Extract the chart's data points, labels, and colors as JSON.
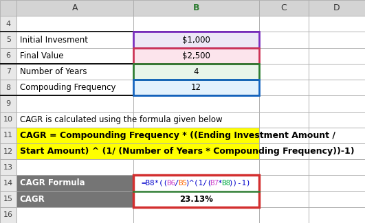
{
  "rows": [
    {
      "row": 4,
      "label": "",
      "value": "",
      "label_bg": "#ffffff",
      "value_bg": "#ffffff"
    },
    {
      "row": 5,
      "label": "Initial Invesment",
      "value": "$1,000",
      "label_bg": "#ffffff",
      "value_bg": "#ede7f6"
    },
    {
      "row": 6,
      "label": "Final Value",
      "value": "$2,500",
      "label_bg": "#ffffff",
      "value_bg": "#fce4ec"
    },
    {
      "row": 7,
      "label": "Number of Years",
      "value": "4",
      "label_bg": "#ffffff",
      "value_bg": "#e8f5e9"
    },
    {
      "row": 8,
      "label": "Compouding Frequency",
      "value": "12",
      "label_bg": "#ffffff",
      "value_bg": "#e3f2fd"
    },
    {
      "row": 9,
      "label": "",
      "value": "",
      "label_bg": "#ffffff",
      "value_bg": "#ffffff"
    },
    {
      "row": 10,
      "label": "CAGR is calculated using the formula given below",
      "value": "",
      "label_bg": "#ffffff",
      "value_bg": "#ffffff"
    },
    {
      "row": 11,
      "label": "CAGR = Compounding Frequency * ((Ending Investment Amount /",
      "value": "",
      "label_bg": "#ffff00",
      "value_bg": "#ffff00"
    },
    {
      "row": 12,
      "label": "Start Amount) ^ (1/ (Number of Years * Compounding Frequency))-1)",
      "value": "",
      "label_bg": "#ffff00",
      "value_bg": "#ffff00"
    },
    {
      "row": 13,
      "label": "",
      "value": "",
      "label_bg": "#ffffff",
      "value_bg": "#ffffff"
    },
    {
      "row": 14,
      "label": "CAGR Formula",
      "value": "FORMULA",
      "label_bg": "#757575",
      "value_bg": "#ffffff"
    },
    {
      "row": 15,
      "label": "CAGR",
      "value": "23.13%",
      "label_bg": "#757575",
      "value_bg": "#ffffff"
    },
    {
      "row": 16,
      "label": "",
      "value": "",
      "label_bg": "#ffffff",
      "value_bg": "#ffffff"
    }
  ],
  "formula_parts": [
    {
      "text": "=B8*((",
      "color": "#0000cc"
    },
    {
      "text": "B6",
      "color": "#cc44cc"
    },
    {
      "text": "/",
      "color": "#0000cc"
    },
    {
      "text": "B5",
      "color": "#ff6600"
    },
    {
      "text": ")^(1/(",
      "color": "#0000cc"
    },
    {
      "text": "B7",
      "color": "#cc44cc"
    },
    {
      "text": "*",
      "color": "#0000cc"
    },
    {
      "text": "B8",
      "color": "#00aa44"
    },
    {
      "text": "))-1)",
      "color": "#0000cc"
    }
  ],
  "row_border_colors": {
    "5": "#7b2fbe",
    "6": "#cc3355",
    "7": "#2e7d32",
    "8": "#1565c0"
  },
  "col_starts": [
    0.0,
    0.046,
    0.365,
    0.71,
    0.845,
    1.0
  ],
  "header_bg": "#d4d4d4",
  "rownr_bg": "#e8e8e8",
  "gray_row_bg": "#757575",
  "gray_row_fg": "#ffffff",
  "total_rows_display": 14,
  "header_fontsize": 9,
  "label_fontsize": 8.5,
  "value_fontsize": 8.5,
  "rownr_fontsize": 8,
  "formula_fontsize": 7.8,
  "yellow_fontsize": 9
}
